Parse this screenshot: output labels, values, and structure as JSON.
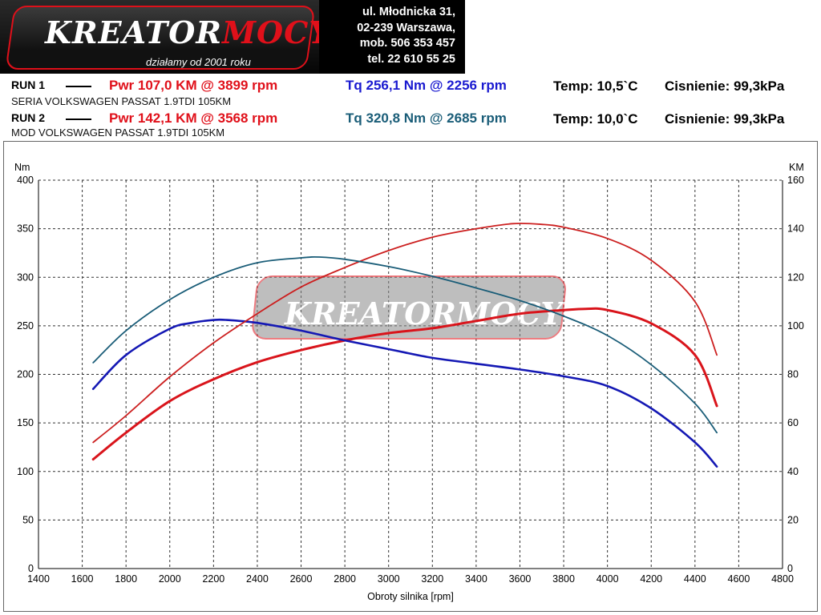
{
  "header": {
    "logo_text_white": "KREATOR",
    "logo_text_red": "MOCY",
    "logo_tagline": "działamy od 2001 roku",
    "address": [
      "ul. Młodnicka 31,",
      "02-239  Warszawa,",
      "mob.  506 353 457",
      "tel.  22 610 55 25"
    ]
  },
  "runs": [
    {
      "label": "RUN 1",
      "desc": "SERIA VOLKSWAGEN PASSAT 1.9TDI 105KM",
      "pwr": "Pwr  107,0 KM @ 3899 rpm",
      "tq": "Tq 256,1 Nm @ 2256 rpm",
      "temp": "Temp: 10,5`C",
      "pressure": "Cisnienie: 99,3kPa"
    },
    {
      "label": "RUN 2",
      "desc": "MOD VOLKSWAGEN PASSAT 1.9TDI 105KM",
      "pwr": "Pwr  142,1 KM @ 3568 rpm",
      "tq": "Tq 320,8 Nm @ 2685 rpm",
      "temp": "Temp: 10,0`C",
      "pressure": "Cisnienie: 99,3kPa"
    }
  ],
  "colors": {
    "run1_power": "#d9141b",
    "run1_torque": "#1418b4",
    "run2_power": "#cc1f1f",
    "run2_torque": "#1a5d78",
    "pwr_text": "#e0101a",
    "tq1_text": "#1a1ad0",
    "tq2_text": "#1a5d78"
  },
  "chart_data": {
    "type": "line",
    "xlabel": "Obroty silnika [rpm]",
    "ylabel_left": "Nm",
    "ylabel_right": "KM",
    "xlim": [
      1400,
      4800
    ],
    "ylim_left": [
      0,
      400
    ],
    "ylim_right": [
      0,
      160
    ],
    "x_ticks": [
      1400,
      1600,
      1800,
      2000,
      2200,
      2400,
      2600,
      2800,
      3000,
      3200,
      3400,
      3600,
      3800,
      4000,
      4200,
      4400,
      4600,
      4800
    ],
    "y_ticks_left": [
      0,
      50,
      100,
      150,
      200,
      250,
      300,
      350,
      400
    ],
    "y_ticks_right": [
      0,
      20,
      40,
      60,
      80,
      100,
      120,
      140,
      160
    ],
    "grid": true,
    "watermark": "KREATORMOCY",
    "series": [
      {
        "key": "run1_power",
        "axis": "right",
        "x": [
          1650,
          1800,
          2000,
          2200,
          2400,
          2600,
          2800,
          3000,
          3200,
          3400,
          3600,
          3800,
          3900,
          4000,
          4200,
          4400,
          4500
        ],
        "y": [
          45,
          56,
          69,
          78,
          85,
          90,
          94,
          97,
          99,
          102,
          105,
          106.5,
          107,
          106.5,
          101,
          88,
          67
        ]
      },
      {
        "key": "run1_torque",
        "axis": "left",
        "x": [
          1650,
          1800,
          2000,
          2100,
          2200,
          2256,
          2400,
          2600,
          2800,
          3000,
          3200,
          3400,
          3600,
          3800,
          4000,
          4200,
          4400,
          4500
        ],
        "y": [
          185,
          220,
          247,
          253,
          256,
          256.1,
          253,
          245,
          235,
          226,
          217,
          211,
          205,
          198,
          188,
          165,
          130,
          105
        ]
      },
      {
        "key": "run2_power",
        "axis": "right",
        "x": [
          1650,
          1800,
          2000,
          2200,
          2400,
          2600,
          2800,
          3000,
          3200,
          3400,
          3568,
          3700,
          3800,
          4000,
          4200,
          4400,
          4500
        ],
        "y": [
          52,
          63,
          79,
          93,
          105,
          116,
          124,
          131,
          136.5,
          140,
          142.1,
          141.8,
          140.6,
          136,
          127,
          110,
          88
        ]
      },
      {
        "key": "run2_torque",
        "axis": "left",
        "x": [
          1650,
          1800,
          2000,
          2200,
          2400,
          2600,
          2685,
          2800,
          3000,
          3200,
          3400,
          3600,
          3800,
          4000,
          4200,
          4400,
          4500
        ],
        "y": [
          212,
          245,
          277,
          300,
          315,
          320,
          320.8,
          318.5,
          311,
          301,
          289,
          276,
          260,
          240,
          210,
          170,
          140
        ]
      }
    ]
  }
}
